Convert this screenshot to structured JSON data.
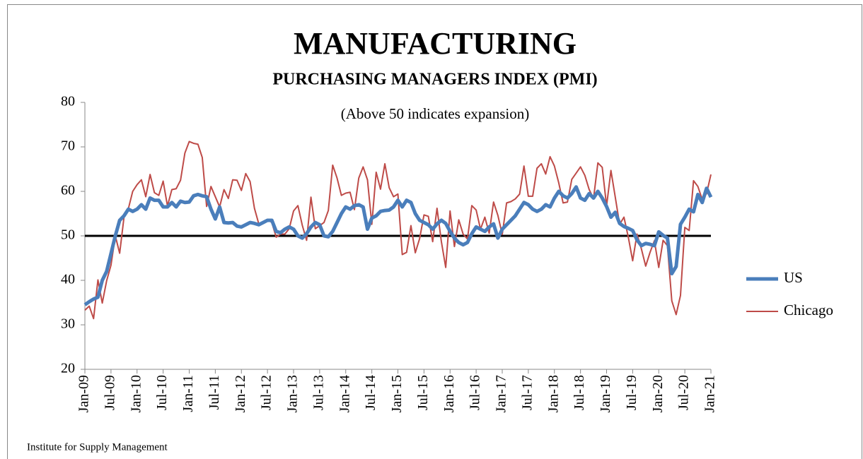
{
  "chart_data": {
    "type": "line",
    "title": "MANUFACTURING",
    "subtitle": "PURCHASING MANAGERS INDEX (PMI)",
    "annotation": "(Above 50 indicates expansion)",
    "source": "Institute for Supply Management",
    "categories": [
      "Jan-09",
      null,
      null,
      null,
      null,
      null,
      "Jul-09",
      null,
      null,
      null,
      null,
      null,
      "Jan-10",
      null,
      null,
      null,
      null,
      null,
      "Jul-10",
      null,
      null,
      null,
      null,
      null,
      "Jan-11",
      null,
      null,
      null,
      null,
      null,
      "Jul-11",
      null,
      null,
      null,
      null,
      null,
      "Jan-12",
      null,
      null,
      null,
      null,
      null,
      "Jul-12",
      null,
      null,
      null,
      null,
      null,
      "Jan-13",
      null,
      null,
      null,
      null,
      null,
      "Jul-13",
      null,
      null,
      null,
      null,
      null,
      "Jan-14",
      null,
      null,
      null,
      null,
      null,
      "Jul-14",
      null,
      null,
      null,
      null,
      null,
      "Jan-15",
      null,
      null,
      null,
      null,
      null,
      "Jul-15",
      null,
      null,
      null,
      null,
      null,
      "Jan-16",
      null,
      null,
      null,
      null,
      null,
      "Jul-16",
      null,
      null,
      null,
      null,
      null,
      "Jan-17",
      null,
      null,
      null,
      null,
      null,
      "Jul-17",
      null,
      null,
      null,
      null,
      null,
      "Jan-18",
      null,
      null,
      null,
      null,
      null,
      "Jul-18",
      null,
      null,
      null,
      null,
      null,
      "Jan-19",
      null,
      null,
      null,
      null,
      null,
      "Jul-19",
      null,
      null,
      null,
      null,
      null,
      "Jan-20",
      null,
      null,
      null,
      null,
      null,
      "Jul-20",
      null,
      null,
      null,
      null,
      null,
      "Jan-21"
    ],
    "series": [
      {
        "name": "US",
        "color": "#4a7ebb",
        "width": 5,
        "values": [
          34.5,
          35.2,
          35.8,
          36.2,
          40,
          42,
          46,
          50,
          53.5,
          54.5,
          56,
          55.5,
          56,
          57,
          56,
          58.5,
          58,
          58,
          56.5,
          56.5,
          57.5,
          56.5,
          57.8,
          57.5,
          57.6,
          59,
          59.3,
          59,
          58.8,
          56,
          53.8,
          56.5,
          53,
          52.9,
          53,
          52.2,
          52,
          52.5,
          53,
          52.8,
          52.5,
          53,
          53.5,
          53.5,
          51,
          50.7,
          51.5,
          52,
          51.5,
          50,
          49.5,
          50.5,
          52,
          53,
          52.5,
          50,
          49.8,
          51,
          53,
          55,
          56.5,
          56,
          56.8,
          57,
          56.5,
          51.5,
          54,
          54.5,
          55.5,
          55.7,
          55.8,
          56.5,
          58,
          56.5,
          58,
          57.5,
          55,
          53.5,
          53,
          52.5,
          51.5,
          52.7,
          53.5,
          52.8,
          51,
          49.5,
          48.5,
          48,
          48.5,
          50.5,
          52,
          51.5,
          51,
          52,
          52.7,
          49.5,
          51.5,
          52.5,
          53.5,
          54.5,
          56,
          57.5,
          57,
          56,
          55.5,
          56,
          57,
          56.5,
          58.5,
          60,
          59,
          58.5,
          59.5,
          61,
          58.5,
          58,
          59.5,
          58.5,
          60,
          58.5,
          56.6,
          54.2,
          55.3,
          52.8,
          52.1,
          51.7,
          51.2,
          49.1,
          47.8,
          48.3,
          48.1,
          47.8,
          50.9,
          50.1,
          49.5,
          41.5,
          43.1,
          52.6,
          54.2,
          56,
          55.4,
          59.3,
          57.5,
          60.7,
          58.7
        ]
      },
      {
        "name": "Chicago",
        "color": "#be4b48",
        "width": 2,
        "values": [
          33.3,
          34.2,
          31.4,
          40.1,
          34.9,
          39.9,
          43.4,
          50,
          46.1,
          54.2,
          56.1,
          60,
          61.5,
          62.6,
          58.8,
          63.8,
          59.7,
          59.1,
          62.3,
          56.7,
          60.4,
          60.6,
          62.5,
          68.6,
          71.2,
          70.8,
          70.6,
          67.6,
          56.6,
          61.1,
          58.8,
          56.5,
          60.4,
          58.4,
          62.6,
          62.5,
          60.2,
          64,
          62.2,
          56.2,
          52.7,
          52.9,
          53.7,
          53,
          49.7,
          50.4,
          50.4,
          51.6,
          55.6,
          56.8,
          52.4,
          49,
          58.7,
          51.6,
          52.3,
          53,
          55.7,
          65.9,
          63,
          59.1,
          59.6,
          59.8,
          55.9,
          63,
          65.5,
          62.6,
          52.6,
          64.3,
          60.5,
          66.2,
          60.8,
          58.8,
          59.4,
          45.8,
          46.3,
          52.3,
          46.2,
          49.4,
          54.7,
          54.4,
          48.7,
          56.2,
          48.7,
          42.9,
          55.6,
          47.6,
          53.6,
          50.4,
          49.3,
          56.8,
          55.8,
          51.5,
          54.2,
          50.6,
          57.6,
          54.6,
          50.3,
          57.4,
          57.7,
          58.3,
          59.4,
          65.7,
          58.9,
          58.9,
          65.2,
          66.2,
          63.9,
          67.8,
          65.7,
          61.9,
          57.4,
          57.6,
          62.7,
          64.1,
          65.5,
          63.6,
          60.4,
          58.4,
          66.4,
          65.4,
          56.7,
          64.7,
          58.7,
          52.6,
          54.2,
          49.7,
          44.4,
          50.4,
          47.1,
          43.2,
          46.3,
          48.9,
          42.9,
          49,
          47.8,
          35.4,
          32.3,
          36.6,
          51.9,
          51.2,
          62.4,
          61.1,
          58.2,
          59.5,
          63.8
        ]
      }
    ],
    "reference_line": 50,
    "ylim": [
      20,
      80
    ],
    "yticks": [
      20,
      30,
      40,
      50,
      60,
      70,
      80
    ],
    "grid": false,
    "legend": "right"
  }
}
